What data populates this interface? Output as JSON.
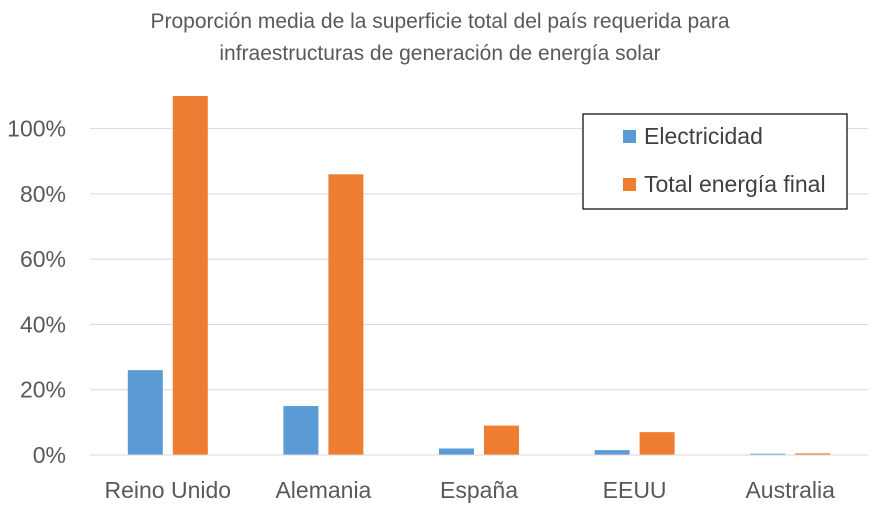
{
  "chart_data": {
    "type": "bar",
    "title": "Proporción media de la superficie total del país requerida para infraestructuras de generación de energía solar",
    "title_lines": [
      "Proporción media de la superficie total del país requerida para",
      "infraestructuras de generación de energía solar"
    ],
    "xlabel": "",
    "ylabel": "",
    "categories": [
      "Reino Unido",
      "Alemania",
      "España",
      "EEUU",
      "Australia"
    ],
    "series": [
      {
        "name": "Electricidad",
        "color": "#5B9BD5",
        "values": [
          26,
          15,
          2,
          1.5,
          0.4
        ]
      },
      {
        "name": "Total energía final",
        "color": "#ED7D31",
        "values": [
          110,
          86,
          9,
          7,
          0.5
        ]
      }
    ],
    "ylim": [
      0,
      110
    ],
    "yticks": [
      0,
      20,
      40,
      60,
      80,
      100
    ],
    "ytick_labels": [
      "0%",
      "20%",
      "40%",
      "60%",
      "80%",
      "100%"
    ],
    "grid": true,
    "legend_position": "top-right"
  }
}
